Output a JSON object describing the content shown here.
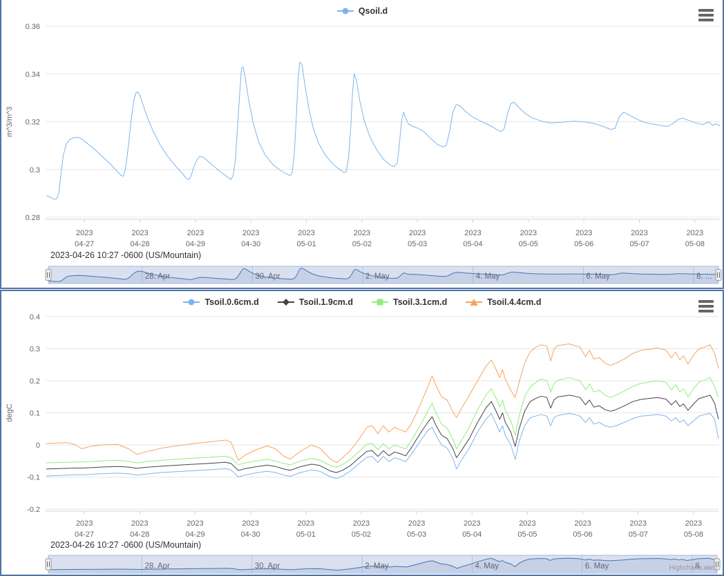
{
  "chart_data": [
    {
      "type": "line",
      "title": "",
      "legend": [
        {
          "label": "Qsoil.d",
          "color": "#7cb5ec",
          "marker": "circle"
        }
      ],
      "ylabel": "m^3/m^3",
      "yticks": [
        "0.36",
        "0.34",
        "0.32",
        "0.3",
        "0.28"
      ],
      "ylim": [
        0.28,
        0.36
      ],
      "grid": true,
      "legend_position": "top-center",
      "xtick_labels": [
        [
          "2023",
          "04-27"
        ],
        [
          "2023",
          "04-28"
        ],
        [
          "2023",
          "04-29"
        ],
        [
          "2023",
          "04-30"
        ],
        [
          "2023",
          "05-01"
        ],
        [
          "2023",
          "05-02"
        ],
        [
          "2023",
          "05-03"
        ],
        [
          "2023",
          "05-04"
        ],
        [
          "2023",
          "05-05"
        ],
        [
          "2023",
          "05-06"
        ],
        [
          "2023",
          "05-07"
        ],
        [
          "2023",
          "05-08"
        ]
      ],
      "footer": "2023-04-26 10:27 -0600 (US/Mountain)",
      "navigator_labels": [
        [
          1,
          "28. Apr"
        ],
        [
          3,
          "30. Apr"
        ],
        [
          5,
          "2. May"
        ],
        [
          7,
          "4. May"
        ],
        [
          9,
          "6. May"
        ],
        [
          11,
          "8. ..."
        ]
      ],
      "series": [
        {
          "name": "Qsoil.d",
          "color": "#7cb5ec",
          "x": [
            -0.69,
            -0.62,
            -0.55,
            -0.5,
            -0.46,
            -0.42,
            -0.38,
            -0.33,
            -0.27,
            -0.2,
            -0.12,
            -0.05,
            0.05,
            0.18,
            0.32,
            0.46,
            0.58,
            0.66,
            0.7,
            0.74,
            0.79,
            0.84,
            0.89,
            0.93,
            0.96,
            1.0,
            1.06,
            1.14,
            1.24,
            1.36,
            1.5,
            1.64,
            1.76,
            1.84,
            1.88,
            1.92,
            1.97,
            2.03,
            2.08,
            2.14,
            2.24,
            2.36,
            2.48,
            2.58,
            2.64,
            2.68,
            2.72,
            2.76,
            2.8,
            2.83,
            2.86,
            2.9,
            2.96,
            3.04,
            3.14,
            3.26,
            3.4,
            3.54,
            3.64,
            3.7,
            3.74,
            3.78,
            3.82,
            3.85,
            3.88,
            3.92,
            3.97,
            4.04,
            4.12,
            4.22,
            4.34,
            4.48,
            4.6,
            4.68,
            4.72,
            4.76,
            4.8,
            4.83,
            4.86,
            4.9,
            4.96,
            5.04,
            5.14,
            5.26,
            5.38,
            5.5,
            5.58,
            5.64,
            5.68,
            5.72,
            5.75,
            5.79,
            5.84,
            5.92,
            6.02,
            6.12,
            6.24,
            6.36,
            6.46,
            6.52,
            6.58,
            6.64,
            6.7,
            6.76,
            6.86,
            6.98,
            7.12,
            7.26,
            7.4,
            7.5,
            7.56,
            7.62,
            7.68,
            7.74,
            7.82,
            7.94,
            8.08,
            8.24,
            8.4,
            8.6,
            8.8,
            9.0,
            9.2,
            9.35,
            9.48,
            9.56,
            9.64,
            9.72,
            9.8,
            9.92,
            10.06,
            10.2,
            10.35,
            10.5,
            10.6,
            10.7,
            10.78,
            10.9,
            11.02,
            11.14,
            11.25,
            11.32,
            11.38,
            11.45
          ],
          "values": [
            0.289,
            0.2885,
            0.2875,
            0.2878,
            0.2905,
            0.2985,
            0.306,
            0.3105,
            0.3125,
            0.3133,
            0.3135,
            0.3128,
            0.311,
            0.3085,
            0.3055,
            0.3025,
            0.2995,
            0.2975,
            0.2972,
            0.3005,
            0.3095,
            0.3205,
            0.329,
            0.3322,
            0.3325,
            0.331,
            0.3268,
            0.3215,
            0.316,
            0.3105,
            0.3055,
            0.3015,
            0.2985,
            0.2962,
            0.2958,
            0.2972,
            0.301,
            0.3042,
            0.3055,
            0.3052,
            0.3032,
            0.3008,
            0.2985,
            0.2968,
            0.2958,
            0.2975,
            0.304,
            0.318,
            0.333,
            0.3425,
            0.343,
            0.338,
            0.329,
            0.3195,
            0.3115,
            0.306,
            0.302,
            0.2995,
            0.2982,
            0.2975,
            0.2985,
            0.306,
            0.323,
            0.338,
            0.345,
            0.344,
            0.336,
            0.326,
            0.3175,
            0.311,
            0.306,
            0.3022,
            0.3,
            0.2988,
            0.2992,
            0.305,
            0.318,
            0.332,
            0.34,
            0.3375,
            0.329,
            0.3205,
            0.314,
            0.3085,
            0.3045,
            0.302,
            0.3012,
            0.303,
            0.312,
            0.321,
            0.324,
            0.3215,
            0.319,
            0.318,
            0.3172,
            0.3158,
            0.313,
            0.3105,
            0.3095,
            0.31,
            0.316,
            0.324,
            0.3272,
            0.3268,
            0.3245,
            0.3222,
            0.3205,
            0.319,
            0.3172,
            0.3158,
            0.3168,
            0.323,
            0.3275,
            0.3282,
            0.3262,
            0.3235,
            0.3215,
            0.3202,
            0.3195,
            0.3198,
            0.3202,
            0.32,
            0.3192,
            0.318,
            0.3168,
            0.3172,
            0.3222,
            0.324,
            0.323,
            0.3215,
            0.32,
            0.3192,
            0.3186,
            0.318,
            0.3192,
            0.321,
            0.3215,
            0.3205,
            0.3195,
            0.3188,
            0.32,
            0.3185,
            0.3192,
            0.3182
          ]
        }
      ]
    },
    {
      "type": "line",
      "title": "",
      "legend": [
        {
          "label": "Tsoil.0.6cm.d",
          "color": "#7cb5ec",
          "marker": "circle"
        },
        {
          "label": "Tsoil.1.9cm.d",
          "color": "#434348",
          "marker": "diamond"
        },
        {
          "label": "Tsoil.3.1cm.d",
          "color": "#90ed7d",
          "marker": "square"
        },
        {
          "label": "Tsoil.4.4cm.d",
          "color": "#f7a35c",
          "marker": "triangle"
        }
      ],
      "ylabel": "degC",
      "yticks": [
        "0.4",
        "0.3",
        "0.2",
        "0.1",
        "0",
        "-0.1",
        "-0.2"
      ],
      "ylim": [
        -0.2,
        0.4
      ],
      "grid": true,
      "legend_position": "top-center",
      "xtick_labels": [
        [
          "2023",
          "04-27"
        ],
        [
          "2023",
          "04-28"
        ],
        [
          "2023",
          "04-29"
        ],
        [
          "2023",
          "04-30"
        ],
        [
          "2023",
          "05-01"
        ],
        [
          "2023",
          "05-02"
        ],
        [
          "2023",
          "05-03"
        ],
        [
          "2023",
          "05-04"
        ],
        [
          "2023",
          "05-05"
        ],
        [
          "2023",
          "05-06"
        ],
        [
          "2023",
          "05-07"
        ],
        [
          "2023",
          "05-08"
        ]
      ],
      "footer": "2023-04-26 10:27 -0600 (US/Mountain)",
      "credit": "Highcharts.com",
      "navigator_labels": [
        [
          1,
          "28. Apr"
        ],
        [
          3,
          "30. Apr"
        ],
        [
          5,
          "2. May"
        ],
        [
          7,
          "4. May"
        ],
        [
          9,
          "6. May"
        ],
        [
          11,
          "8. ..."
        ]
      ],
      "shared_x": [
        -0.69,
        -0.3,
        -0.15,
        -0.05,
        0.1,
        0.3,
        0.6,
        0.8,
        0.95,
        1.1,
        1.4,
        1.7,
        2.0,
        2.3,
        2.55,
        2.65,
        2.78,
        2.9,
        3.1,
        3.3,
        3.45,
        3.6,
        3.72,
        3.9,
        4.1,
        4.25,
        4.45,
        4.55,
        4.65,
        4.8,
        4.95,
        5.1,
        5.2,
        5.3,
        5.4,
        5.5,
        5.6,
        5.7,
        5.8,
        5.9,
        6.0,
        6.1,
        6.2,
        6.28,
        6.35,
        6.45,
        6.55,
        6.65,
        6.72,
        6.8,
        6.95,
        7.1,
        7.25,
        7.35,
        7.45,
        7.5,
        7.55,
        7.6,
        7.7,
        7.78,
        7.85,
        7.95,
        8.05,
        8.15,
        8.25,
        8.35,
        8.42,
        8.48,
        8.55,
        8.65,
        8.75,
        8.85,
        8.95,
        9.05,
        9.12,
        9.2,
        9.3,
        9.4,
        9.5,
        9.6,
        9.75,
        9.9,
        10.05,
        10.2,
        10.35,
        10.5,
        10.6,
        10.68,
        10.75,
        10.82,
        10.9,
        11.0,
        11.1,
        11.2,
        11.3,
        11.38,
        11.45
      ],
      "series": [
        {
          "name": "Tsoil.0.6cm.d",
          "color": "#7cb5ec",
          "values": [
            -0.097,
            -0.094,
            -0.093,
            -0.093,
            -0.092,
            -0.09,
            -0.088,
            -0.09,
            -0.094,
            -0.091,
            -0.086,
            -0.083,
            -0.08,
            -0.077,
            -0.074,
            -0.078,
            -0.1,
            -0.094,
            -0.087,
            -0.082,
            -0.086,
            -0.094,
            -0.098,
            -0.086,
            -0.078,
            -0.082,
            -0.1,
            -0.105,
            -0.098,
            -0.082,
            -0.06,
            -0.038,
            -0.036,
            -0.055,
            -0.035,
            -0.052,
            -0.04,
            -0.045,
            -0.052,
            -0.03,
            -0.005,
            0.02,
            0.045,
            0.055,
            0.03,
            0.0,
            -0.01,
            -0.04,
            -0.075,
            -0.05,
            -0.01,
            0.04,
            0.08,
            0.098,
            0.06,
            0.04,
            0.06,
            0.03,
            0.0,
            -0.045,
            0.01,
            0.06,
            0.085,
            0.09,
            0.095,
            0.09,
            0.06,
            0.085,
            0.092,
            0.095,
            0.098,
            0.095,
            0.09,
            0.07,
            0.085,
            0.065,
            0.07,
            0.06,
            0.055,
            0.06,
            0.07,
            0.082,
            0.09,
            0.092,
            0.095,
            0.09,
            0.075,
            0.085,
            0.07,
            0.078,
            0.06,
            0.075,
            0.09,
            0.095,
            0.098,
            0.08,
            0.02
          ]
        },
        {
          "name": "Tsoil.1.9cm.d",
          "color": "#434348",
          "values": [
            -0.075,
            -0.073,
            -0.072,
            -0.072,
            -0.071,
            -0.069,
            -0.067,
            -0.069,
            -0.073,
            -0.07,
            -0.066,
            -0.063,
            -0.06,
            -0.057,
            -0.054,
            -0.058,
            -0.08,
            -0.074,
            -0.068,
            -0.063,
            -0.067,
            -0.075,
            -0.079,
            -0.068,
            -0.06,
            -0.064,
            -0.082,
            -0.086,
            -0.08,
            -0.065,
            -0.042,
            -0.02,
            -0.018,
            -0.036,
            -0.018,
            -0.034,
            -0.022,
            -0.027,
            -0.034,
            -0.01,
            0.018,
            0.045,
            0.07,
            0.088,
            0.06,
            0.03,
            0.02,
            -0.01,
            -0.04,
            -0.02,
            0.02,
            0.07,
            0.115,
            0.135,
            0.1,
            0.08,
            0.1,
            0.07,
            0.04,
            -0.005,
            0.05,
            0.105,
            0.135,
            0.145,
            0.152,
            0.148,
            0.115,
            0.14,
            0.15,
            0.152,
            0.155,
            0.152,
            0.148,
            0.125,
            0.14,
            0.118,
            0.122,
            0.11,
            0.105,
            0.11,
            0.122,
            0.135,
            0.142,
            0.145,
            0.148,
            0.143,
            0.125,
            0.138,
            0.12,
            0.128,
            0.108,
            0.128,
            0.145,
            0.15,
            0.155,
            0.13,
            0.08
          ]
        },
        {
          "name": "Tsoil.3.1cm.d",
          "color": "#90ed7d",
          "values": [
            -0.056,
            -0.054,
            -0.053,
            -0.053,
            -0.052,
            -0.05,
            -0.048,
            -0.051,
            -0.056,
            -0.052,
            -0.048,
            -0.044,
            -0.041,
            -0.038,
            -0.035,
            -0.04,
            -0.062,
            -0.056,
            -0.05,
            -0.045,
            -0.05,
            -0.058,
            -0.062,
            -0.05,
            -0.042,
            -0.047,
            -0.065,
            -0.07,
            -0.062,
            -0.046,
            -0.022,
            0.002,
            0.004,
            -0.015,
            0.004,
            -0.012,
            0.0,
            -0.006,
            -0.012,
            0.012,
            0.042,
            0.072,
            0.105,
            0.13,
            0.1,
            0.065,
            0.052,
            0.02,
            -0.012,
            0.01,
            0.055,
            0.11,
            0.155,
            0.175,
            0.14,
            0.118,
            0.14,
            0.108,
            0.075,
            0.03,
            0.09,
            0.15,
            0.18,
            0.195,
            0.205,
            0.2,
            0.165,
            0.192,
            0.202,
            0.205,
            0.21,
            0.205,
            0.2,
            0.172,
            0.19,
            0.165,
            0.17,
            0.155,
            0.148,
            0.155,
            0.168,
            0.182,
            0.192,
            0.196,
            0.2,
            0.195,
            0.172,
            0.188,
            0.165,
            0.175,
            0.15,
            0.175,
            0.196,
            0.202,
            0.21,
            0.18,
            0.148
          ]
        },
        {
          "name": "Tsoil.4.4cm.d",
          "color": "#f7a35c",
          "values": [
            0.005,
            0.007,
            0.0,
            -0.012,
            -0.005,
            0.0,
            0.002,
            -0.012,
            -0.03,
            -0.022,
            -0.01,
            -0.002,
            0.005,
            0.01,
            0.015,
            0.008,
            -0.048,
            -0.032,
            -0.015,
            -0.003,
            -0.012,
            -0.035,
            -0.044,
            -0.02,
            0.0,
            -0.01,
            -0.045,
            -0.055,
            -0.042,
            -0.018,
            0.015,
            0.055,
            0.06,
            0.035,
            0.06,
            0.04,
            0.055,
            0.048,
            0.04,
            0.065,
            0.1,
            0.14,
            0.18,
            0.215,
            0.185,
            0.15,
            0.14,
            0.105,
            0.085,
            0.11,
            0.155,
            0.2,
            0.245,
            0.265,
            0.23,
            0.21,
            0.235,
            0.205,
            0.17,
            0.148,
            0.195,
            0.255,
            0.29,
            0.305,
            0.312,
            0.308,
            0.262,
            0.298,
            0.31,
            0.312,
            0.315,
            0.31,
            0.305,
            0.275,
            0.295,
            0.268,
            0.272,
            0.255,
            0.248,
            0.255,
            0.268,
            0.285,
            0.295,
            0.298,
            0.302,
            0.296,
            0.272,
            0.29,
            0.265,
            0.278,
            0.252,
            0.28,
            0.3,
            0.305,
            0.312,
            0.285,
            0.238
          ]
        }
      ]
    }
  ],
  "ui": {
    "menu_icon": "hamburger-icon",
    "accent_border_color": "#4d74a8",
    "grid_color": "#e6e6e6",
    "axis_line_color": "#ccd6eb",
    "label_color": "#666666"
  }
}
